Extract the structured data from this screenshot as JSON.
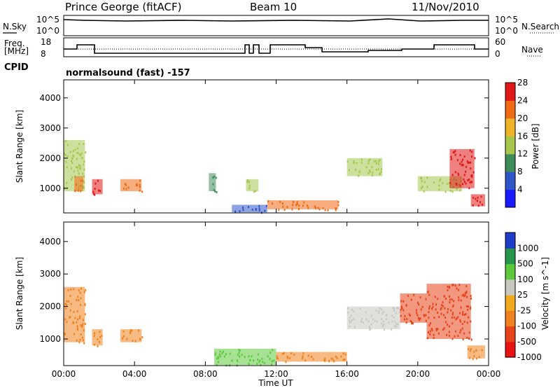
{
  "header": {
    "station": "Prince George (fitACF)",
    "beam": "Beam 10",
    "date": "11/Nov/2010"
  },
  "top_panels": {
    "nsky_label": "N.Sky",
    "nsearch_label": "N.Search",
    "nsky_ticks": [
      "10^5",
      "10^0"
    ],
    "nsearch_ticks": [
      "10^5",
      "10^0"
    ],
    "freq_label_line1": "Freq.",
    "freq_label_line2": "[MHz]",
    "freq_ticks": [
      "18",
      "8"
    ],
    "nave_label": "Nave",
    "nave_ticks": [
      "60",
      "0"
    ],
    "cpid_label": "CPID",
    "cpid_text": "normalsound (fast) -157"
  },
  "x_axis": {
    "label": "Time UT",
    "ticks": [
      "00:00",
      "04:00",
      "08:00",
      "12:00",
      "16:00",
      "20:00",
      "00:00"
    ]
  },
  "chart_data": [
    {
      "type": "heatmap",
      "quantity": "Power",
      "ylabel": "Slant Range [km]",
      "xlabel": "Time UT",
      "ylim": [
        180,
        4600
      ],
      "xlim_hours": [
        0,
        24
      ],
      "yticks": [
        1000,
        2000,
        3000,
        4000
      ],
      "colorbar": {
        "label": "Power [dB]",
        "ticks": [
          "4",
          "8",
          "12",
          "16",
          "20",
          "24",
          "28"
        ],
        "colors": [
          "#1a1aff",
          "#2e56c8",
          "#3e8c5a",
          "#a6c64c",
          "#f0b428",
          "#f06a14",
          "#e01818"
        ]
      },
      "echo_regions": [
        {
          "t": [
            0.0,
            1.2
          ],
          "range": [
            900,
            2600
          ],
          "power_db": 14
        },
        {
          "t": [
            0.6,
            1.1
          ],
          "range": [
            900,
            1400
          ],
          "power_db": 22
        },
        {
          "t": [
            1.6,
            2.2
          ],
          "range": [
            800,
            1300
          ],
          "power_db": 26
        },
        {
          "t": [
            3.2,
            4.4
          ],
          "range": [
            900,
            1300
          ],
          "power_db": 24
        },
        {
          "t": [
            8.2,
            8.6
          ],
          "range": [
            900,
            1500
          ],
          "power_db": 10
        },
        {
          "t": [
            9.5,
            11.5
          ],
          "range": [
            200,
            450
          ],
          "power_db": 8
        },
        {
          "t": [
            10.3,
            11.0
          ],
          "range": [
            900,
            1300
          ],
          "power_db": 16
        },
        {
          "t": [
            11.5,
            15.5
          ],
          "range": [
            300,
            600
          ],
          "power_db": 22
        },
        {
          "t": [
            16.0,
            18.0
          ],
          "range": [
            1400,
            2000
          ],
          "power_db": 16
        },
        {
          "t": [
            20.0,
            22.5
          ],
          "range": [
            900,
            1400
          ],
          "power_db": 16
        },
        {
          "t": [
            21.8,
            23.2
          ],
          "range": [
            1000,
            2300
          ],
          "power_db": 28
        },
        {
          "t": [
            23.0,
            23.8
          ],
          "range": [
            400,
            800
          ],
          "power_db": 28
        }
      ]
    },
    {
      "type": "heatmap",
      "quantity": "Velocity",
      "ylabel": "Slant Range [km]",
      "xlabel": "Time UT",
      "ylim": [
        180,
        4600
      ],
      "xlim_hours": [
        0,
        24
      ],
      "yticks": [
        1000,
        2000,
        3000,
        4000
      ],
      "colorbar": {
        "label": "Velocity [m s^-1]",
        "ticks": [
          "1000",
          "500",
          "100",
          "25",
          "-25",
          "-100",
          "-500",
          "-1000"
        ],
        "colors": [
          "#1e3cc8",
          "#28964a",
          "#5cc83c",
          "#c8c8c0",
          "#f0aa1e",
          "#f0821e",
          "#e8441a",
          "#e81414"
        ]
      },
      "echo_regions": [
        {
          "t": [
            0.0,
            1.2
          ],
          "range": [
            900,
            2600
          ],
          "velocity": -100
        },
        {
          "t": [
            1.6,
            2.2
          ],
          "range": [
            800,
            1300
          ],
          "velocity": -100
        },
        {
          "t": [
            3.2,
            4.4
          ],
          "range": [
            900,
            1300
          ],
          "velocity": -100
        },
        {
          "t": [
            8.5,
            12.0
          ],
          "range": [
            200,
            700
          ],
          "velocity": 100
        },
        {
          "t": [
            12.0,
            16.0
          ],
          "range": [
            300,
            600
          ],
          "velocity": -100
        },
        {
          "t": [
            16.0,
            19.0
          ],
          "range": [
            1300,
            2000
          ],
          "velocity": 25
        },
        {
          "t": [
            19.0,
            20.5
          ],
          "range": [
            1500,
            2400
          ],
          "velocity": -500
        },
        {
          "t": [
            20.5,
            23.0
          ],
          "range": [
            1000,
            2700
          ],
          "velocity": -500
        },
        {
          "t": [
            22.8,
            23.8
          ],
          "range": [
            400,
            800
          ],
          "velocity": -100
        }
      ]
    }
  ]
}
